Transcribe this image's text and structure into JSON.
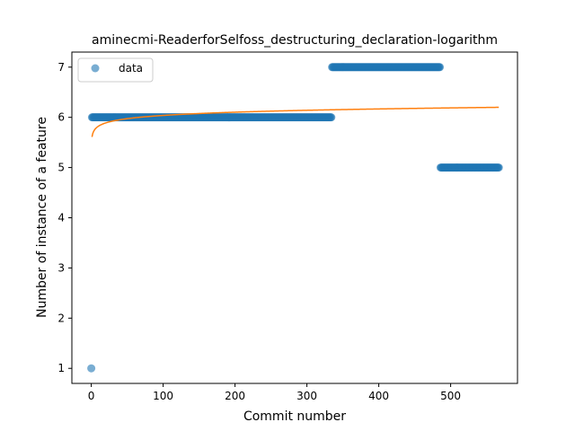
{
  "chart_data": {
    "type": "scatter",
    "title": "aminecmi-ReaderforSelfoss_destructuring_declaration-logarithm",
    "xlabel": "Commit number",
    "ylabel": "Number of instance of a feature",
    "xlim": [
      -27,
      593
    ],
    "ylim": [
      0.7,
      7.3
    ],
    "xticks": [
      0,
      100,
      200,
      300,
      400,
      500
    ],
    "yticks": [
      1,
      2,
      3,
      4,
      5,
      6,
      7
    ],
    "grid": false,
    "legend": {
      "placement": "upper-left",
      "entries": [
        "data"
      ]
    },
    "series": [
      {
        "name": "data",
        "kind": "scatter",
        "color": "#1f77b4",
        "segments": [
          {
            "x_start": 0,
            "x_end": 0,
            "y": 1
          },
          {
            "x_start": 1,
            "x_end": 334,
            "y": 6
          },
          {
            "x_start": 335,
            "x_end": 485,
            "y": 7
          },
          {
            "x_start": 486,
            "x_end": 567,
            "y": 5
          }
        ]
      },
      {
        "kind": "line",
        "color": "#ff7f0e",
        "fit": {
          "model": "logarithmic",
          "a": 5.61,
          "b": 0.093,
          "x_start": 1,
          "x_end": 567
        }
      }
    ]
  }
}
